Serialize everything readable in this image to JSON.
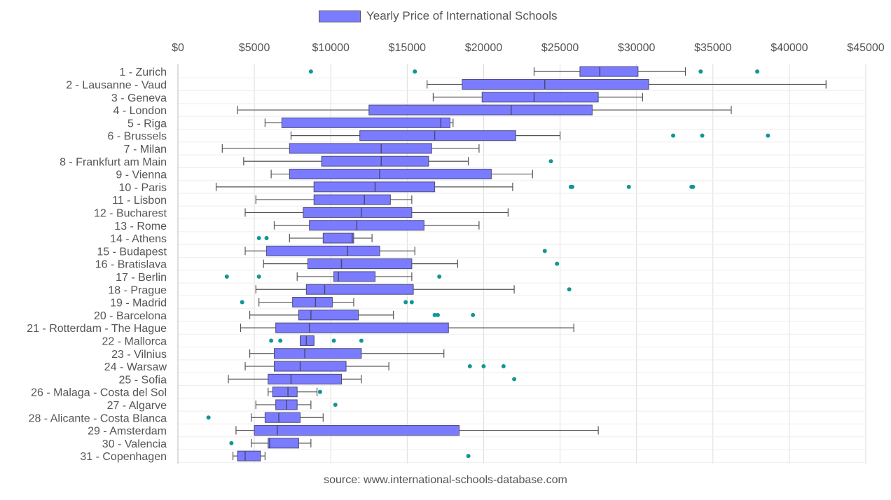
{
  "colors": {
    "box_fill": "#7b7bff",
    "box_stroke": "#4a4a7a",
    "whisker": "#555555",
    "outlier": "#129696",
    "grid": "#dddddd",
    "text": "#555555"
  },
  "legend": {
    "label": "Yearly Price of International Schools"
  },
  "source": "source: www.international-schools-database.com",
  "chart_data": {
    "type": "boxplot",
    "orientation": "horizontal",
    "series_name": "Yearly Price of International Schools",
    "x_range": [
      0,
      45000
    ],
    "x_ticks": [
      0,
      5000,
      10000,
      15000,
      20000,
      25000,
      30000,
      35000,
      40000,
      45000
    ],
    "x_tick_labels": [
      "$0",
      "$5000",
      "$10000",
      "$15000",
      "$20000",
      "$25000",
      "$30000",
      "$35000",
      "$40000",
      "$45000"
    ],
    "x_axis_position": "top",
    "grid": true,
    "legend_position": "top",
    "categories": [
      {
        "label": "1 - Zurich",
        "whisker_low": 23300,
        "q1": 26300,
        "median": 27600,
        "q3": 30100,
        "whisker_high": 33200,
        "outliers": [
          8700,
          15500,
          34200,
          37900
        ]
      },
      {
        "label": "2 - Lausanne - Vaud",
        "whisker_low": 16300,
        "q1": 18600,
        "median": 24000,
        "q3": 30800,
        "whisker_high": 42400,
        "outliers": []
      },
      {
        "label": "3 - Geneva",
        "whisker_low": 16700,
        "q1": 19900,
        "median": 23300,
        "q3": 27500,
        "whisker_high": 30400,
        "outliers": []
      },
      {
        "label": "4 - London",
        "whisker_low": 3900,
        "q1": 12500,
        "median": 21800,
        "q3": 27100,
        "whisker_high": 36200,
        "outliers": []
      },
      {
        "label": "5 - Riga",
        "whisker_low": 5700,
        "q1": 6800,
        "median": 17200,
        "q3": 17800,
        "whisker_high": 18000,
        "outliers": []
      },
      {
        "label": "6 - Brussels",
        "whisker_low": 7400,
        "q1": 11900,
        "median": 16800,
        "q3": 22100,
        "whisker_high": 25000,
        "outliers": [
          32400,
          34300,
          38600
        ]
      },
      {
        "label": "7 - Milan",
        "whisker_low": 2900,
        "q1": 7300,
        "median": 13300,
        "q3": 16600,
        "whisker_high": 19700,
        "outliers": []
      },
      {
        "label": "8 - Frankfurt am Main",
        "whisker_low": 4300,
        "q1": 9400,
        "median": 13300,
        "q3": 16400,
        "whisker_high": 19000,
        "outliers": [
          24400
        ]
      },
      {
        "label": "9 - Vienna",
        "whisker_low": 6100,
        "q1": 7300,
        "median": 13200,
        "q3": 20500,
        "whisker_high": 23200,
        "outliers": []
      },
      {
        "label": "10 - Paris",
        "whisker_low": 2500,
        "q1": 8900,
        "median": 12900,
        "q3": 16800,
        "whisker_high": 21900,
        "outliers": [
          25700,
          25800,
          29500,
          33600,
          33700
        ]
      },
      {
        "label": "11 - Lisbon",
        "whisker_low": 5100,
        "q1": 8900,
        "median": 12200,
        "q3": 13900,
        "whisker_high": 15300,
        "outliers": []
      },
      {
        "label": "12 - Bucharest",
        "whisker_low": 4400,
        "q1": 8200,
        "median": 12000,
        "q3": 15300,
        "whisker_high": 21600,
        "outliers": []
      },
      {
        "label": "13 - Rome",
        "whisker_low": 6300,
        "q1": 8600,
        "median": 11700,
        "q3": 16100,
        "whisker_high": 19700,
        "outliers": []
      },
      {
        "label": "14 - Athens",
        "whisker_low": 7300,
        "q1": 9500,
        "median": 11400,
        "q3": 11500,
        "whisker_high": 12700,
        "outliers": [
          5300,
          5800
        ]
      },
      {
        "label": "15 - Budapest",
        "whisker_low": 4400,
        "q1": 5800,
        "median": 11100,
        "q3": 13200,
        "whisker_high": 15500,
        "outliers": [
          24000
        ]
      },
      {
        "label": "16 - Bratislava",
        "whisker_low": 5600,
        "q1": 8500,
        "median": 10700,
        "q3": 15300,
        "whisker_high": 18300,
        "outliers": [
          24800
        ]
      },
      {
        "label": "17 - Berlin",
        "whisker_low": 7800,
        "q1": 10200,
        "median": 10500,
        "q3": 12900,
        "whisker_high": 15300,
        "outliers": [
          3200,
          5300,
          17100
        ]
      },
      {
        "label": "18 - Prague",
        "whisker_low": 5100,
        "q1": 8400,
        "median": 9600,
        "q3": 15400,
        "whisker_high": 22000,
        "outliers": [
          25600
        ]
      },
      {
        "label": "19 - Madrid",
        "whisker_low": 5300,
        "q1": 7500,
        "median": 9000,
        "q3": 10100,
        "whisker_high": 11500,
        "outliers": [
          4200,
          14900,
          15300
        ]
      },
      {
        "label": "20 - Barcelona",
        "whisker_low": 4700,
        "q1": 7900,
        "median": 8700,
        "q3": 11800,
        "whisker_high": 14100,
        "outliers": [
          16800,
          17000,
          19300
        ]
      },
      {
        "label": "21 - Rotterdam - The Hague",
        "whisker_low": 4100,
        "q1": 6400,
        "median": 8600,
        "q3": 17700,
        "whisker_high": 25900,
        "outliers": []
      },
      {
        "label": "22 - Mallorca",
        "whisker_low": 8000,
        "q1": 8000,
        "median": 8400,
        "q3": 8900,
        "whisker_high": 8900,
        "outliers": [
          6100,
          6700,
          10200,
          12000
        ]
      },
      {
        "label": "23 - Vilnius",
        "whisker_low": 4700,
        "q1": 6300,
        "median": 8300,
        "q3": 12000,
        "whisker_high": 17400,
        "outliers": []
      },
      {
        "label": "24 - Warsaw",
        "whisker_low": 4400,
        "q1": 6300,
        "median": 8000,
        "q3": 11000,
        "whisker_high": 13800,
        "outliers": [
          19100,
          20000,
          21300
        ]
      },
      {
        "label": "25 - Sofia",
        "whisker_low": 3300,
        "q1": 5900,
        "median": 7400,
        "q3": 10700,
        "whisker_high": 12000,
        "outliers": [
          22000
        ]
      },
      {
        "label": "26 - Malaga - Costa del Sol",
        "whisker_low": 5900,
        "q1": 6200,
        "median": 7200,
        "q3": 7800,
        "whisker_high": 9100,
        "outliers": [
          9300
        ]
      },
      {
        "label": "27 - Algarve",
        "whisker_low": 5100,
        "q1": 6400,
        "median": 7100,
        "q3": 7800,
        "whisker_high": 8700,
        "outliers": [
          10300
        ]
      },
      {
        "label": "28 - Alicante - Costa Blanca",
        "whisker_low": 4800,
        "q1": 5700,
        "median": 6600,
        "q3": 8000,
        "whisker_high": 9500,
        "outliers": [
          2000
        ]
      },
      {
        "label": "29 - Amsterdam",
        "whisker_low": 3800,
        "q1": 5000,
        "median": 6500,
        "q3": 18400,
        "whisker_high": 27500,
        "outliers": []
      },
      {
        "label": "30 - Valencia",
        "whisker_low": 4800,
        "q1": 5900,
        "median": 6000,
        "q3": 7900,
        "whisker_high": 8700,
        "outliers": [
          3500
        ]
      },
      {
        "label": "31 - Copenhagen",
        "whisker_low": 3600,
        "q1": 3900,
        "median": 4400,
        "q3": 5400,
        "whisker_high": 5700,
        "outliers": [
          19000
        ]
      }
    ]
  }
}
